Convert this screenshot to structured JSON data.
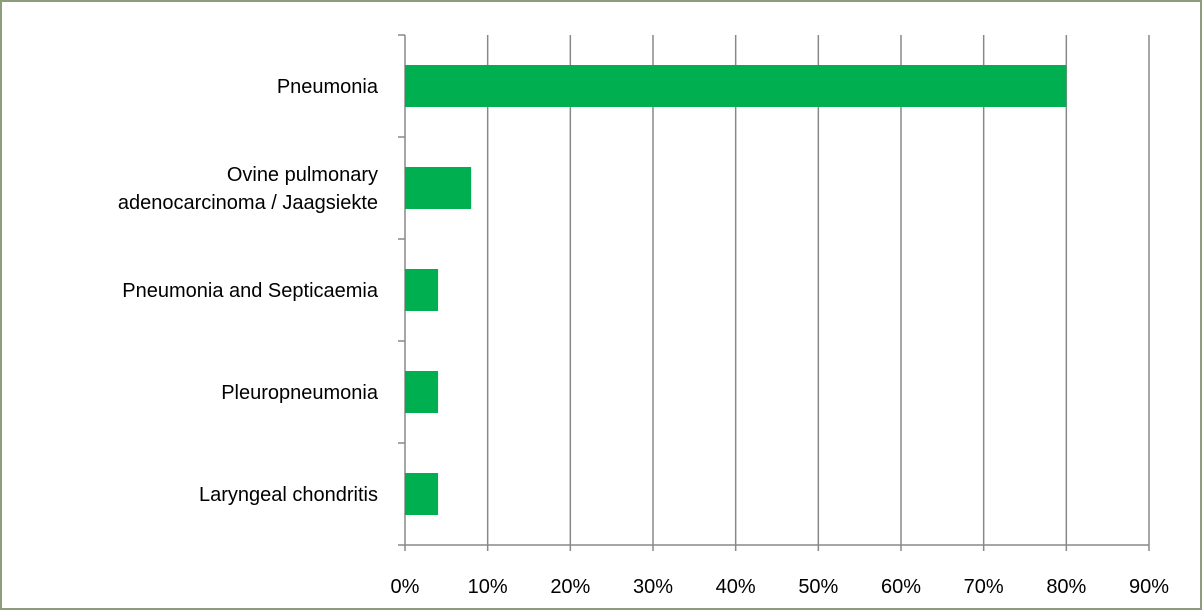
{
  "chart_data": {
    "type": "bar",
    "orientation": "horizontal",
    "categories": [
      [
        "Pneumonia"
      ],
      [
        "Ovine pulmonary",
        "adenocarcinoma / Jaagsiekte"
      ],
      [
        "Pneumonia  and Septicaemia"
      ],
      [
        "Pleuropneumonia"
      ],
      [
        "Laryngeal chondritis"
      ]
    ],
    "values": [
      80,
      8,
      4,
      4,
      4
    ],
    "xlim": [
      0,
      90
    ],
    "xticks": [
      "0%",
      "10%",
      "20%",
      "30%",
      "40%",
      "50%",
      "60%",
      "70%",
      "80%",
      "90%"
    ],
    "grid": true,
    "legend": "none",
    "bar_color": "#00b050",
    "grid_color": "#888888",
    "frame_color": "#8d9c7a"
  }
}
